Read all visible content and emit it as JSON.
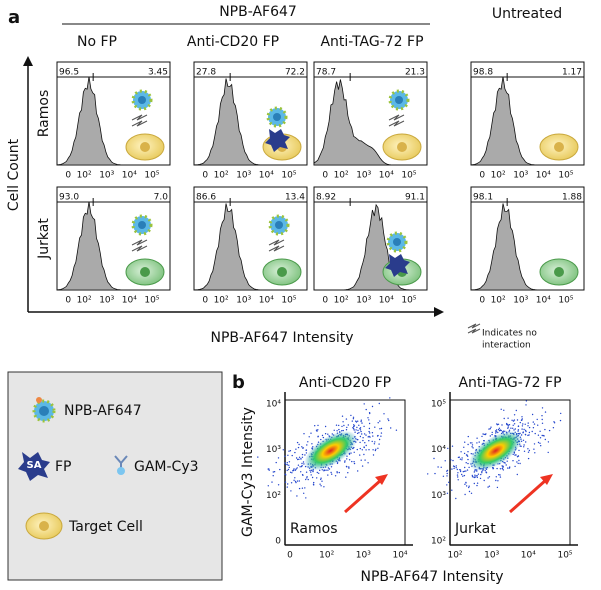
{
  "panel_a": {
    "label": "a",
    "group_title": "NPB-AF647",
    "untreated_title": "Untreated",
    "columns": [
      "No FP",
      "Anti-CD20 FP",
      "Anti-TAG-72 FP"
    ],
    "rows": [
      "Ramos",
      "Jurkat"
    ],
    "y_axis_label": "Cell Count",
    "x_axis_label": "NPB-AF647 Intensity",
    "x_ticks": [
      "0",
      "10²",
      "10³",
      "10⁴",
      "10⁵"
    ],
    "gates": [
      [
        [
          "96.5",
          "3.45"
        ],
        [
          "27.8",
          "72.2"
        ],
        [
          "78.7",
          "21.3"
        ]
      ],
      [
        [
          "93.0",
          "7.0"
        ],
        [
          "86.6",
          "13.4"
        ],
        [
          "8.92",
          "91.1"
        ]
      ]
    ],
    "untreated_gates": [
      [
        "98.8",
        "1.17"
      ],
      [
        "98.1",
        "1.88"
      ]
    ],
    "note": [
      "Indicates no",
      "interaction"
    ]
  },
  "legend": {
    "npb": "NPB-AF647",
    "sa": "SA",
    "fp": "FP",
    "gam": "GAM-Cy3",
    "cell": "Target Cell"
  },
  "panel_b": {
    "label": "b",
    "y_axis_label": "GAM-Cy3 Intensity",
    "x_axis_label": "NPB-AF647 Intensity",
    "plots": [
      {
        "title": "Anti-CD20 FP",
        "cell": "Ramos",
        "x_ticks": [
          "0",
          "10²",
          "10³",
          "10⁴"
        ],
        "y_ticks": [
          "10⁴",
          "10³",
          "10²",
          "0"
        ]
      },
      {
        "title": "Anti-TAG-72 FP",
        "cell": "Jurkat",
        "x_ticks": [
          "10²",
          "10³",
          "10⁴",
          "10⁵"
        ],
        "y_ticks": [
          "10⁵",
          "10⁴",
          "10³",
          "10²"
        ]
      }
    ]
  }
}
